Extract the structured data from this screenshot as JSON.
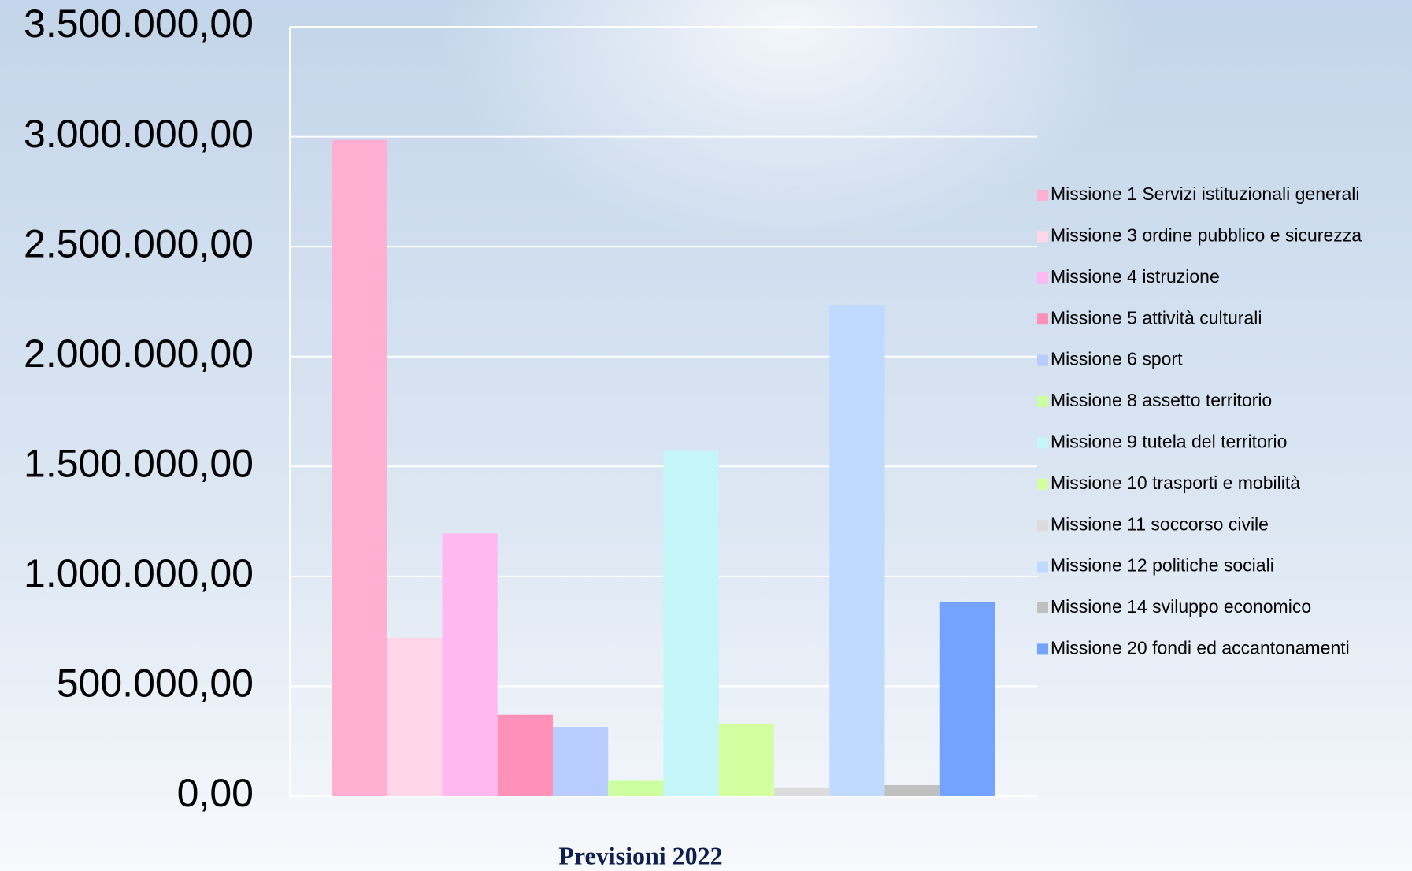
{
  "chart_data": {
    "type": "bar",
    "categories": [
      "Previsioni 2022"
    ],
    "series": [
      {
        "name": "Missione 1 Servizi istituzionali generali",
        "color": "#ffb0d2",
        "values": [
          2985000
        ]
      },
      {
        "name": "Missione 3 ordine pubblico e sicurezza",
        "color": "#ffd6e8",
        "values": [
          720000
        ]
      },
      {
        "name": "Missione 4 istruzione",
        "color": "#ffb8f0",
        "values": [
          1195000
        ]
      },
      {
        "name": "Missione 5 attività culturali",
        "color": "#ff90b8",
        "values": [
          370000
        ]
      },
      {
        "name": "Missione 6 sport",
        "color": "#b8ccff",
        "values": [
          315000
        ]
      },
      {
        "name": "Missione 8 assetto territorio",
        "color": "#ccffa0",
        "values": [
          70000
        ]
      },
      {
        "name": "Missione 9 tutela del territorio",
        "color": "#c4f6f8",
        "values": [
          1570000
        ]
      },
      {
        "name": "Missione 10 trasporti e mobilità",
        "color": "#d4ffa0",
        "values": [
          330000
        ]
      },
      {
        "name": "Missione 11 soccorso civile",
        "color": "#dcdcdc",
        "values": [
          40000
        ]
      },
      {
        "name": "Missione 12 politiche sociali",
        "color": "#c0daff",
        "values": [
          2235000
        ]
      },
      {
        "name": "Missione 14 sviluppo economico",
        "color": "#c0c0c0",
        "values": [
          50000
        ]
      },
      {
        "name": "Missione 20 fondi ed accantonamenti",
        "color": "#74a2ff",
        "values": [
          885000
        ]
      }
    ],
    "ylim": [
      0,
      3500000
    ],
    "yticks": [
      {
        "value": 0,
        "label": "0,00"
      },
      {
        "value": 500000,
        "label": "500.000,00"
      },
      {
        "value": 1000000,
        "label": "1.000.000,00"
      },
      {
        "value": 1500000,
        "label": "1.500.000,00"
      },
      {
        "value": 2000000,
        "label": "2.000.000,00"
      },
      {
        "value": 2500000,
        "label": "2.500.000,00"
      },
      {
        "value": 3000000,
        "label": "3.000.000,00"
      },
      {
        "value": 3500000,
        "label": "3.500.000,00"
      }
    ],
    "grid": true,
    "legend": "right"
  }
}
